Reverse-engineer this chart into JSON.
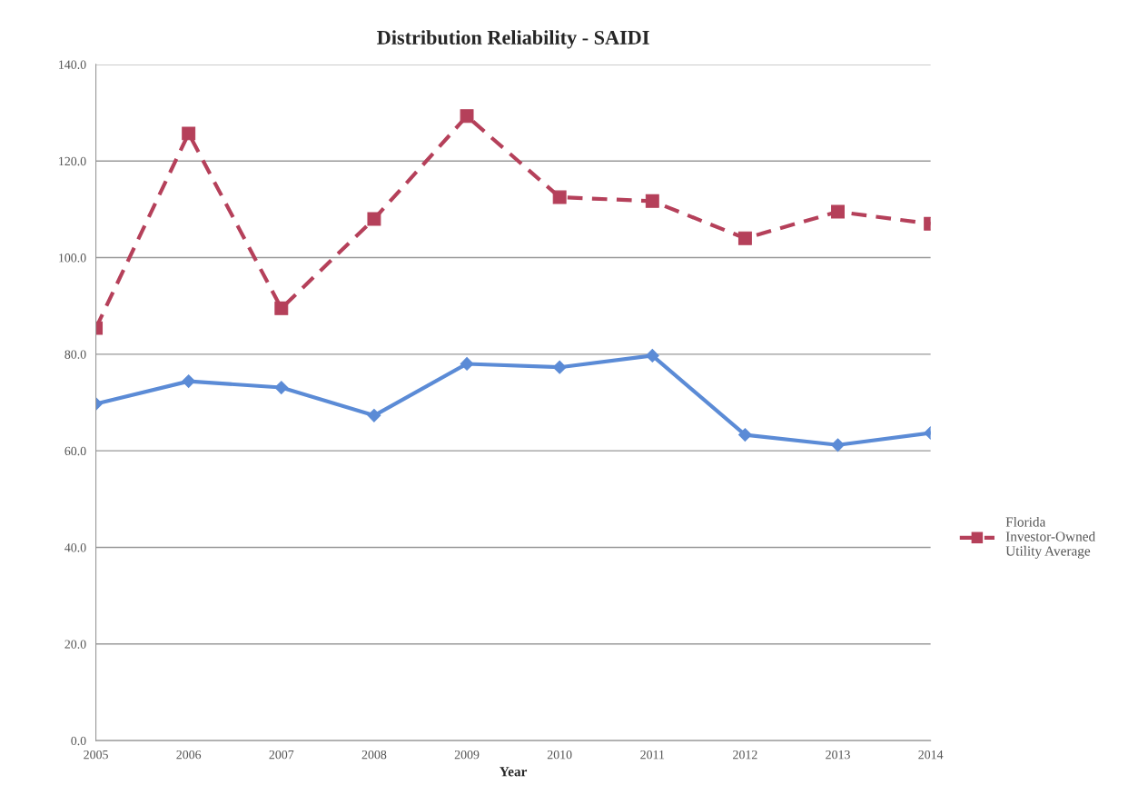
{
  "chart_data": {
    "type": "line",
    "title": "Distribution Reliability - SAIDI",
    "xlabel": "Year",
    "categories": [
      "2005",
      "2006",
      "2007",
      "2008",
      "2009",
      "2010",
      "2011",
      "2012",
      "2013",
      "2014"
    ],
    "series": [
      {
        "color": "#5b8bd6",
        "marker": "diamond",
        "line_style": "solid",
        "values": [
          69.7,
          74.4,
          73.1,
          67.3,
          78.0,
          77.3,
          79.7,
          63.3,
          61.2,
          63.7
        ]
      },
      {
        "name": "Florida Investor-Owned Utility Average",
        "color": "#b5405a",
        "marker": "square",
        "line_style": "dashed",
        "values": [
          85.4,
          125.7,
          89.5,
          108.0,
          129.3,
          112.5,
          111.7,
          104.0,
          109.5,
          107.0
        ]
      }
    ],
    "ylim": [
      0,
      140
    ],
    "yticks": [
      {
        "value": 0,
        "label": "0.0"
      },
      {
        "value": 20,
        "label": "20.0"
      },
      {
        "value": 40,
        "label": "40.0"
      },
      {
        "value": 60,
        "label": "60.0"
      },
      {
        "value": 80,
        "label": "80.0"
      },
      {
        "value": 100,
        "label": "100.0"
      },
      {
        "value": 120,
        "label": "120.0"
      },
      {
        "value": 140,
        "label": "140.0"
      }
    ],
    "grid": "y",
    "legend": "right"
  }
}
